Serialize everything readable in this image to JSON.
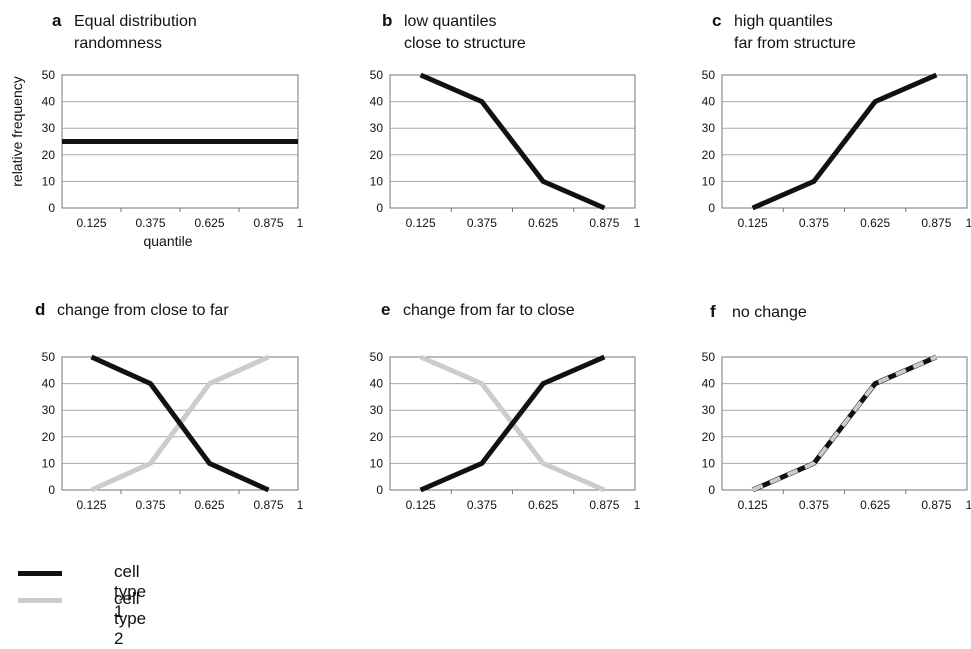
{
  "colors": {
    "cell_type_1": "#111111",
    "cell_type_2": "#cccccc",
    "grid": "#aaaaaa",
    "frame": "#777777"
  },
  "legend": [
    {
      "label": "cell type 1",
      "color": "#111111"
    },
    {
      "label": "cell type 2",
      "color": "#cccccc"
    }
  ],
  "chart_data": [
    {
      "id": "a",
      "type": "line",
      "panel_letter": "a",
      "title_lines": [
        "Equal distribution",
        "randomness"
      ],
      "ylabel": "relative frequency",
      "xlabel": "quantile",
      "x_ticks": [
        "0.125",
        "0.375",
        "0.625",
        "0.875",
        "1"
      ],
      "y_ticks": [
        "0",
        "10",
        "20",
        "30",
        "40",
        "50"
      ],
      "xlim": [
        0,
        1
      ],
      "ylim": [
        0,
        50
      ],
      "grid": true,
      "series": [
        {
          "values": [
            [
              0,
              25
            ],
            [
              1,
              25
            ]
          ],
          "color": "#111111"
        }
      ]
    },
    {
      "id": "b",
      "type": "line",
      "panel_letter": "b",
      "title_lines": [
        "low quantiles",
        "close to structure"
      ],
      "x_ticks": [
        "0.125",
        "0.375",
        "0.625",
        "0.875",
        "1"
      ],
      "y_ticks": [
        "0",
        "10",
        "20",
        "30",
        "40",
        "50"
      ],
      "xlim": [
        0,
        1
      ],
      "ylim": [
        0,
        50
      ],
      "grid": true,
      "series": [
        {
          "values": [
            [
              0.125,
              50
            ],
            [
              0.375,
              40
            ],
            [
              0.625,
              10
            ],
            [
              0.875,
              0
            ]
          ],
          "color": "#111111"
        }
      ]
    },
    {
      "id": "c",
      "type": "line",
      "panel_letter": "c",
      "title_lines": [
        "high quantiles",
        "far from structure"
      ],
      "x_ticks": [
        "0.125",
        "0.375",
        "0.625",
        "0.875",
        "1"
      ],
      "y_ticks": [
        "0",
        "10",
        "20",
        "30",
        "40",
        "50"
      ],
      "xlim": [
        0,
        1
      ],
      "ylim": [
        0,
        50
      ],
      "grid": true,
      "series": [
        {
          "values": [
            [
              0.125,
              0
            ],
            [
              0.375,
              10
            ],
            [
              0.625,
              40
            ],
            [
              0.875,
              50
            ]
          ],
          "color": "#111111"
        }
      ]
    },
    {
      "id": "d",
      "type": "line",
      "panel_letter": "d",
      "title_lines": [
        "change from close to far"
      ],
      "x_ticks": [
        "0.125",
        "0.375",
        "0.625",
        "0.875",
        "1"
      ],
      "y_ticks": [
        "0",
        "10",
        "20",
        "30",
        "40",
        "50"
      ],
      "xlim": [
        0,
        1
      ],
      "ylim": [
        0,
        50
      ],
      "grid": true,
      "series": [
        {
          "values": [
            [
              0.125,
              0
            ],
            [
              0.375,
              10
            ],
            [
              0.625,
              40
            ],
            [
              0.875,
              50
            ]
          ],
          "color": "#cccccc"
        },
        {
          "values": [
            [
              0.125,
              50
            ],
            [
              0.375,
              40
            ],
            [
              0.625,
              10
            ],
            [
              0.875,
              0
            ]
          ],
          "color": "#111111"
        }
      ]
    },
    {
      "id": "e",
      "type": "line",
      "panel_letter": "e",
      "title_lines": [
        "change from far to close"
      ],
      "x_ticks": [
        "0.125",
        "0.375",
        "0.625",
        "0.875",
        "1"
      ],
      "y_ticks": [
        "0",
        "10",
        "20",
        "30",
        "40",
        "50"
      ],
      "xlim": [
        0,
        1
      ],
      "ylim": [
        0,
        50
      ],
      "grid": true,
      "series": [
        {
          "values": [
            [
              0.125,
              50
            ],
            [
              0.375,
              40
            ],
            [
              0.625,
              10
            ],
            [
              0.875,
              0
            ]
          ],
          "color": "#cccccc"
        },
        {
          "values": [
            [
              0.125,
              0
            ],
            [
              0.375,
              10
            ],
            [
              0.625,
              40
            ],
            [
              0.875,
              50
            ]
          ],
          "color": "#111111"
        }
      ]
    },
    {
      "id": "f",
      "type": "line",
      "panel_letter": "f",
      "title_lines": [
        "no change"
      ],
      "x_ticks": [
        "0.125",
        "0.375",
        "0.625",
        "0.875",
        "1"
      ],
      "y_ticks": [
        "0",
        "10",
        "20",
        "30",
        "40",
        "50"
      ],
      "xlim": [
        0,
        1
      ],
      "ylim": [
        0,
        50
      ],
      "grid": true,
      "series": [
        {
          "values": [
            [
              0.125,
              0
            ],
            [
              0.375,
              10
            ],
            [
              0.625,
              40
            ],
            [
              0.875,
              50
            ]
          ],
          "color": "#111111"
        },
        {
          "values": [
            [
              0.125,
              0
            ],
            [
              0.375,
              10
            ],
            [
              0.625,
              40
            ],
            [
              0.875,
              50
            ]
          ],
          "color": "#cccccc",
          "dashed": true
        }
      ]
    }
  ]
}
